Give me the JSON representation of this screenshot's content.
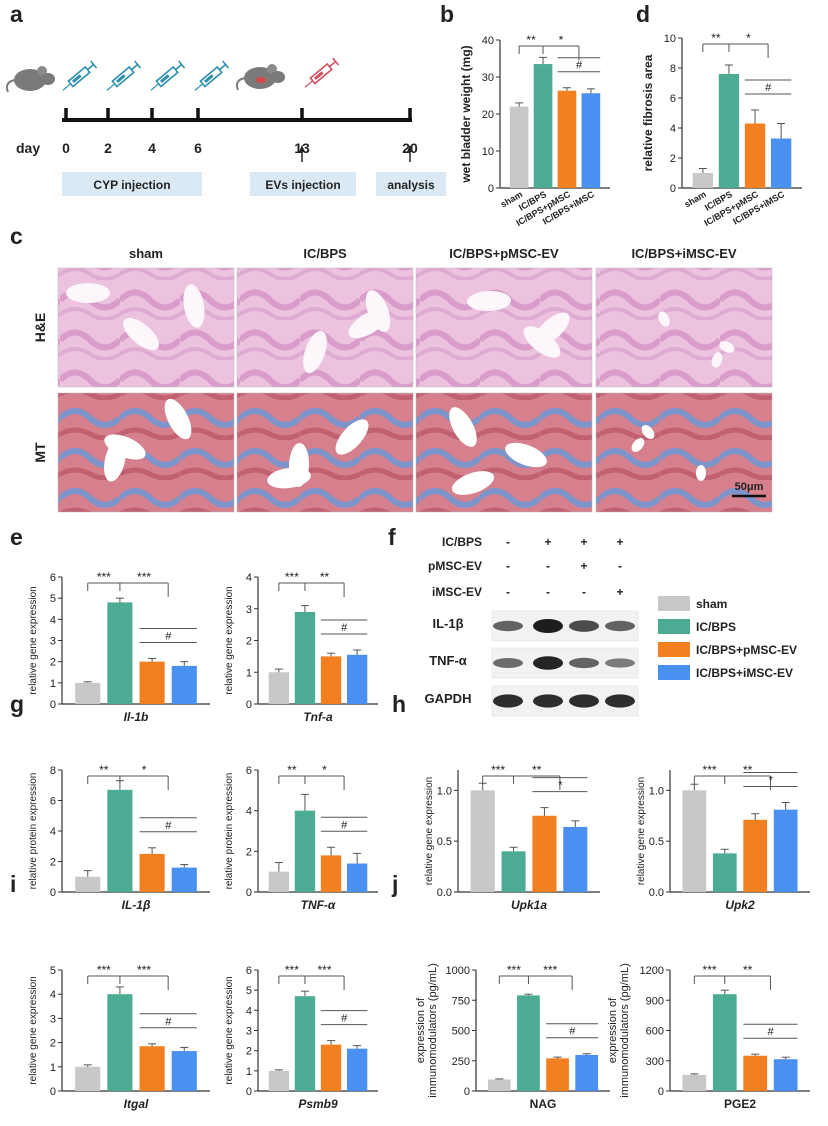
{
  "panel_letters": {
    "a": "a",
    "b": "b",
    "c": "c",
    "d": "d",
    "e": "e",
    "f": "f",
    "g": "g",
    "h": "h",
    "i": "i",
    "j": "j"
  },
  "colors": {
    "sham": "#c8c8c8",
    "ic_bps": "#4bab93",
    "pmsc": "#f38020",
    "imsc": "#4a90f0",
    "grid": "#333333",
    "he_tissue": "#e7b7d8",
    "mt_red": "#c86070",
    "mt_blue": "#6a86c4"
  },
  "timeline": {
    "day_label": "day",
    "days": [
      "0",
      "2",
      "4",
      "6",
      "13",
      "20"
    ],
    "cyp_label": "CYP injection",
    "ev_label": "EVs injection",
    "analysis_label": "analysis"
  },
  "histology": {
    "columns": [
      "sham",
      "IC/BPS",
      "IC/BPS+pMSC-EV",
      "IC/BPS+iMSC-EV"
    ],
    "rows": [
      "H&E",
      "MT"
    ],
    "scale_bar": "50μm"
  },
  "western": {
    "row_labels": [
      "IC/BPS",
      "pMSC-EV",
      "iMSC-EV"
    ],
    "signs": [
      [
        "-",
        "+",
        "+",
        "+"
      ],
      [
        "-",
        "-",
        "+",
        "-"
      ],
      [
        "-",
        "-",
        "-",
        "+"
      ]
    ],
    "bands": [
      "IL-1β",
      "TNF-α",
      "GAPDH"
    ],
    "band_intensity": [
      [
        0.55,
        1.0,
        0.7,
        0.55
      ],
      [
        0.5,
        0.95,
        0.55,
        0.4
      ],
      [
        0.9,
        0.9,
        0.9,
        0.9
      ]
    ]
  },
  "legend": [
    "sham",
    "IC/BPS",
    "IC/BPS+pMSC-EV",
    "IC/BPS+iMSC-EV"
  ],
  "chart_data": [
    {
      "id": "b",
      "type": "bar",
      "ylabel": "wet bladder weight (mg)",
      "categories": [
        "sham",
        "IC/BPS",
        "IC/BPS+pMSC",
        "IC/BPS+iMSC"
      ],
      "values": [
        22,
        33.5,
        26.3,
        25.6
      ],
      "errors": [
        1,
        1.8,
        0.8,
        1.2
      ],
      "ylim": [
        0,
        40
      ],
      "yticks": [
        "0",
        "10",
        "20",
        "30",
        "40"
      ],
      "sig1": [
        "**",
        "*"
      ],
      "sig2": "#"
    },
    {
      "id": "d",
      "type": "bar",
      "ylabel": "relative fibrosis area",
      "categories": [
        "sham",
        "IC/BPS",
        "IC/BPS+pMSC",
        "IC/BPS+iMSC"
      ],
      "values": [
        1,
        7.6,
        4.3,
        3.3
      ],
      "errors": [
        0.3,
        0.6,
        0.9,
        1.0
      ],
      "ylim": [
        0,
        10
      ],
      "yticks": [
        "0",
        "2",
        "4",
        "6",
        "8",
        "10"
      ],
      "sig1": [
        "**",
        "*"
      ],
      "sig2": "#"
    },
    {
      "id": "e1",
      "type": "bar",
      "ylabel": "relative gene expression",
      "xlabel": "Il-1b",
      "values": [
        1,
        4.8,
        2.0,
        1.8
      ],
      "errors": [
        0.05,
        0.2,
        0.15,
        0.2
      ],
      "ylim": [
        0,
        6
      ],
      "yticks": [
        "0",
        "1",
        "2",
        "3",
        "4",
        "5",
        "6"
      ],
      "sig1": [
        "***",
        "***"
      ],
      "sig2": "#"
    },
    {
      "id": "e2",
      "type": "bar",
      "ylabel": "relative gene expression",
      "xlabel": "Tnf-a",
      "values": [
        1,
        2.9,
        1.5,
        1.55
      ],
      "errors": [
        0.1,
        0.2,
        0.1,
        0.15
      ],
      "ylim": [
        0,
        4
      ],
      "yticks": [
        "0",
        "1",
        "2",
        "3",
        "4"
      ],
      "sig1": [
        "***",
        "**"
      ],
      "sig2": "#"
    },
    {
      "id": "g1",
      "type": "bar",
      "ylabel": "relative protein expression",
      "xlabel": "IL-1β",
      "values": [
        1,
        6.7,
        2.5,
        1.6
      ],
      "errors": [
        0.4,
        0.6,
        0.4,
        0.2
      ],
      "ylim": [
        0,
        8
      ],
      "yticks": [
        "0",
        "2",
        "4",
        "6",
        "8"
      ],
      "sig1": [
        "**",
        "*"
      ],
      "sig2": "#"
    },
    {
      "id": "g2",
      "type": "bar",
      "ylabel": "relative protein expression",
      "xlabel": "TNF-α",
      "values": [
        1,
        4.0,
        1.8,
        1.4
      ],
      "errors": [
        0.45,
        0.8,
        0.4,
        0.5
      ],
      "ylim": [
        0,
        6
      ],
      "yticks": [
        "0",
        "2",
        "4",
        "6"
      ],
      "sig1": [
        "**",
        "*"
      ],
      "sig2": "#"
    },
    {
      "id": "h1",
      "type": "bar",
      "ylabel": "relative gene expression",
      "xlabel": "Upk1a",
      "values": [
        1.0,
        0.4,
        0.75,
        0.64
      ],
      "errors": [
        0.07,
        0.04,
        0.08,
        0.06
      ],
      "ylim": [
        0,
        1.2
      ],
      "yticks": [
        "0.0",
        "0.5",
        "1.0"
      ],
      "ytickvals": [
        0,
        0.5,
        1.0
      ],
      "sig1": [
        "***",
        "**"
      ],
      "sig2": "*"
    },
    {
      "id": "h2",
      "type": "bar",
      "ylabel": "relative gene expression",
      "xlabel": "Upk2",
      "values": [
        1.0,
        0.38,
        0.71,
        0.81
      ],
      "errors": [
        0.06,
        0.04,
        0.06,
        0.07
      ],
      "ylim": [
        0,
        1.2
      ],
      "yticks": [
        "0.0",
        "0.5",
        "1.0"
      ],
      "ytickvals": [
        0,
        0.5,
        1.0
      ],
      "sig1": [
        "***",
        "**"
      ],
      "sig2": "*"
    },
    {
      "id": "i1",
      "type": "bar",
      "ylabel": "relative gene expression",
      "xlabel": "Itgal",
      "values": [
        1,
        4.0,
        1.85,
        1.65
      ],
      "errors": [
        0.08,
        0.3,
        0.1,
        0.15
      ],
      "ylim": [
        0,
        5
      ],
      "yticks": [
        "0",
        "1",
        "2",
        "3",
        "4",
        "5"
      ],
      "sig1": [
        "***",
        "***"
      ],
      "sig2": "#"
    },
    {
      "id": "i2",
      "type": "bar",
      "ylabel": "relative gene expression",
      "xlabel": "Psmb9",
      "values": [
        1,
        4.7,
        2.3,
        2.1
      ],
      "errors": [
        0.05,
        0.25,
        0.2,
        0.15
      ],
      "ylim": [
        0,
        6
      ],
      "yticks": [
        "0",
        "1",
        "2",
        "3",
        "4",
        "5",
        "6"
      ],
      "sig1": [
        "***",
        "***"
      ],
      "sig2": "#"
    },
    {
      "id": "j1",
      "type": "bar",
      "ylabel": "expression of immunomodulators (pg/mL)",
      "xlabel": "NAG",
      "values": [
        95,
        790,
        270,
        298
      ],
      "errors": [
        5,
        10,
        10,
        10
      ],
      "ylim": [
        0,
        1000
      ],
      "yticks": [
        "0",
        "250",
        "500",
        "750",
        "1000"
      ],
      "sig1": [
        "***",
        "***"
      ],
      "sig2": "#"
    },
    {
      "id": "j2",
      "type": "bar",
      "ylabel": "expression of immunomodulators (pg/mL)",
      "xlabel": "PGE2",
      "values": [
        160,
        960,
        350,
        315
      ],
      "errors": [
        10,
        40,
        15,
        20
      ],
      "ylim": [
        0,
        1200
      ],
      "yticks": [
        "0",
        "300",
        "600",
        "900",
        "1200"
      ],
      "sig1": [
        "***",
        "**"
      ],
      "sig2": "#"
    }
  ]
}
